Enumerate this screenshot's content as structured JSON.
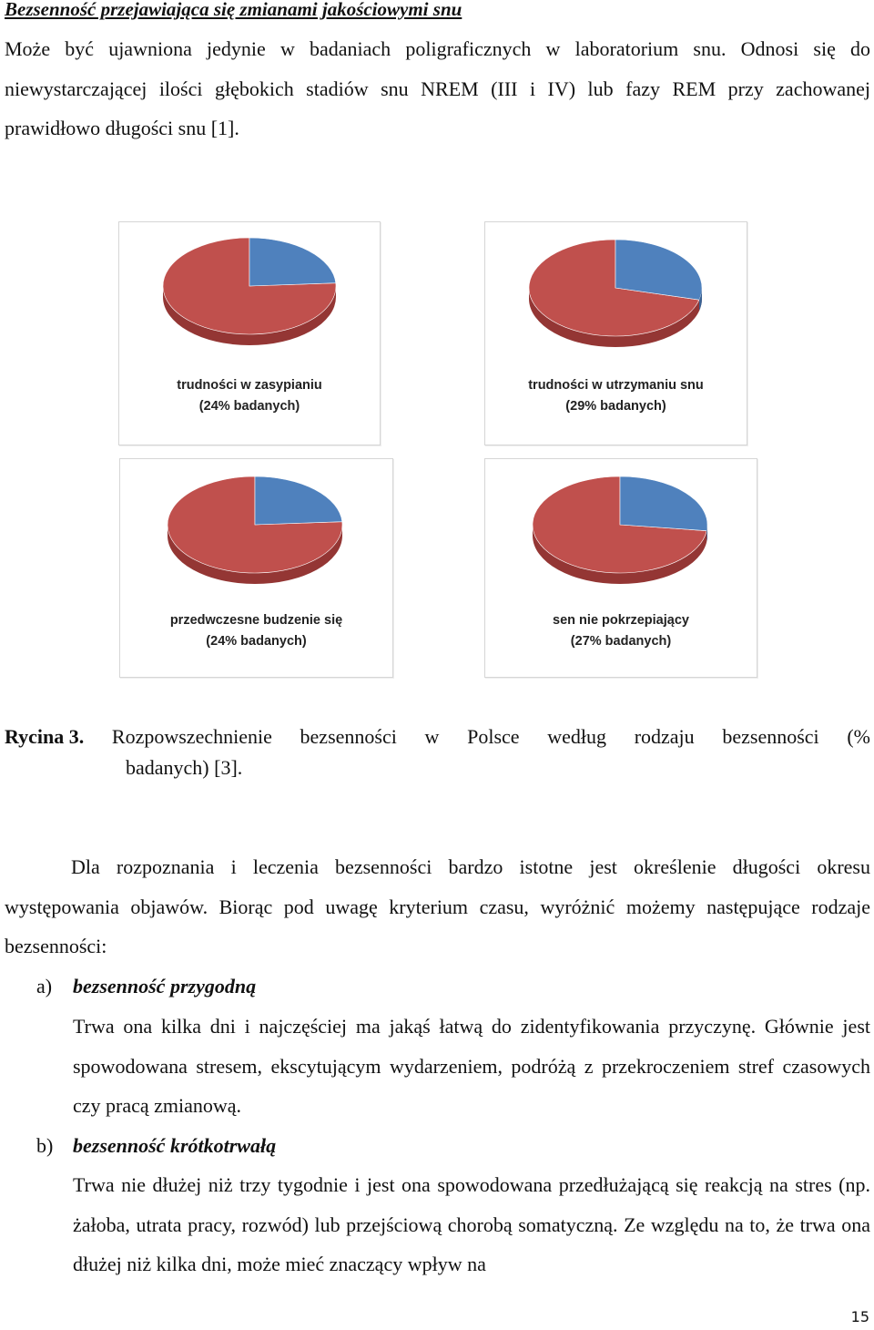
{
  "heading": "Bezsenność przejawiająca się zmianami jakościowymi snu",
  "paragraph_top": "Może być ujawniona jedynie w badaniach poligraficznych w laboratorium snu. Odnosi się do niewystarczającej ilości głębokich stadiów snu NREM (III i IV) lub fazy REM przy zachowanej prawidłowo długości snu [1].",
  "colors": {
    "slice_main": "#c0504d",
    "slice_main_side": "#943634",
    "slice_highlight": "#4f81bd",
    "slice_highlight_side": "#3a6293"
  },
  "chart_data": [
    {
      "type": "pie",
      "label_line1": "trudności w zasypianiu",
      "label_line2": "(24% badanych)",
      "values": [
        24,
        76
      ]
    },
    {
      "type": "pie",
      "label_line1": "trudności w utrzymaniu snu",
      "label_line2": "(29% badanych)",
      "values": [
        29,
        71
      ]
    },
    {
      "type": "pie",
      "label_line1": "przedwczesne budzenie się",
      "label_line2": "(24% badanych)",
      "values": [
        24,
        76
      ]
    },
    {
      "type": "pie",
      "label_line1": "sen nie pokrzepiający",
      "label_line2": "(27% badanych)",
      "values": [
        27,
        73
      ]
    }
  ],
  "caption": {
    "label": "Rycina 3.",
    "words": [
      "Rozpowszechnienie",
      "bezsenności",
      "w",
      "Polsce",
      "według",
      "rodzaju",
      "bezsenności",
      "(%"
    ],
    "line2": "badanych) [3]."
  },
  "paragraph_mid": "Dla rozpoznania i leczenia bezsenności bardzo istotne jest określenie długości okresu występowania objawów. Biorąc pod uwagę kryterium czasu, wyróżnić możemy następujące rodzaje bezsenności:",
  "list": [
    {
      "marker": "a)",
      "title": "bezsenność przygodną",
      "body": "Trwa ona kilka dni i najczęściej ma jakąś łatwą do zidentyfikowania przyczynę. Głównie jest spowodowana stresem, ekscytującym wydarzeniem, podróżą z przekroczeniem stref czasowych czy pracą zmianową."
    },
    {
      "marker": "b)",
      "title": "bezsenność krótkotrwałą",
      "body": "Trwa nie dłużej niż trzy tygodnie i jest ona spowodowana przedłużającą się reakcją na stres (np. żałoba, utrata pracy, rozwód) lub przejściową chorobą somatyczną. Ze względu na to, że trwa ona dłużej niż kilka dni, może mieć znaczący wpływ na"
    }
  ],
  "page_number": "15"
}
